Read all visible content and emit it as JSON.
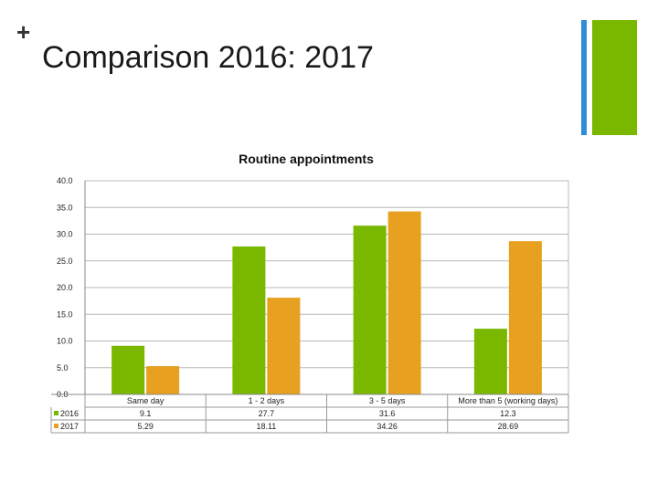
{
  "slide": {
    "title": "Comparison 2016: 2017",
    "bullet": "+"
  },
  "colors": {
    "accent_blue": "#2e8ed8",
    "accent_green": "#7ab800",
    "series_2016": "#7ab800",
    "series_2017": "#e8a020"
  },
  "chart_data": {
    "type": "bar",
    "title": "Routine appointments",
    "xlabel": "",
    "ylabel": "",
    "ylim": [
      0,
      40
    ],
    "yticks": [
      "0.0",
      "5.0",
      "10.0",
      "15.0",
      "20.0",
      "25.0",
      "30.0",
      "35.0",
      "40.0"
    ],
    "categories": [
      "Same day",
      "1 - 2 days",
      "3 - 5 days",
      "More than 5 (working days)"
    ],
    "series": [
      {
        "name": "2016",
        "values": [
          9.1,
          27.7,
          31.6,
          12.3
        ],
        "labels": [
          "9.1",
          "27.7",
          "31.6",
          "12.3"
        ]
      },
      {
        "name": "2017",
        "values": [
          5.29,
          18.11,
          34.26,
          28.69
        ],
        "labels": [
          "5.29",
          "18.11",
          "34.26",
          "28.69"
        ]
      }
    ],
    "grid": true,
    "legend_placement": "data-table-left"
  }
}
